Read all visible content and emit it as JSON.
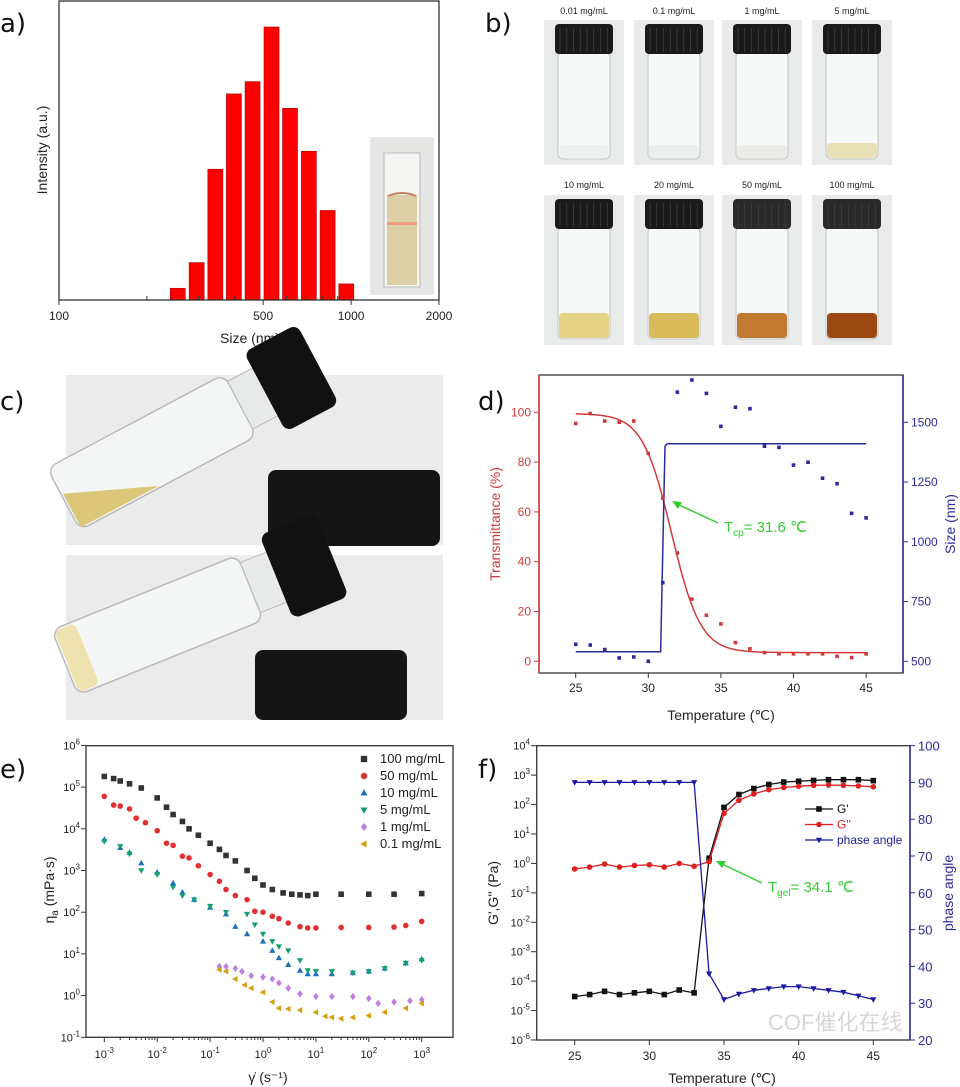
{
  "panel_labels": {
    "a": "a)",
    "b": "b)",
    "c": "c)",
    "d": "d)",
    "e": "e)",
    "f": "f)"
  },
  "chart_data": [
    {
      "id": "a",
      "type": "bar",
      "xlabel": "Size (nm)",
      "ylabel": "Intensity (a.u.)",
      "xscale": "log",
      "xlim": [
        100,
        2000
      ],
      "xticks": [
        100,
        500,
        1000,
        2000
      ],
      "bar_color": "#ff0000",
      "x": [
        255,
        296,
        343,
        397,
        460,
        534,
        618,
        717,
        831,
        963
      ],
      "values": [
        4.3,
        13.7,
        47.9,
        75.5,
        80.0,
        100,
        70.2,
        54.5,
        32.8,
        5.9
      ],
      "inset": "cuvette photo"
    },
    {
      "id": "d",
      "type": "scatter",
      "xlabel": "Temperature (℃)",
      "ylabel_left": "Transmittance (%)",
      "ylabel_right": "Size (nm)",
      "xlim": [
        22.5,
        47.5
      ],
      "xticks": [
        25,
        30,
        35,
        40,
        45
      ],
      "ylim_left": [
        -5,
        115
      ],
      "yticks_left": [
        0,
        20,
        40,
        60,
        80,
        100
      ],
      "ylim_right": [
        450,
        1700
      ],
      "yticks_right": [
        500,
        750,
        1000,
        1250,
        1500
      ],
      "left_color": "#d03a3a",
      "right_color": "#2b2b9a",
      "x": [
        25,
        26,
        27,
        28,
        29,
        30,
        31,
        32,
        33,
        34,
        35,
        36,
        37,
        38,
        39,
        40,
        41,
        42,
        43,
        44,
        45
      ],
      "transmittance": [
        95.5,
        99.5,
        96.5,
        96,
        96.5,
        83.5,
        65.5,
        43.5,
        25,
        18.5,
        15,
        7.5,
        5,
        3.5,
        3,
        3,
        3,
        3,
        2,
        1.5,
        3
      ],
      "size": [
        571,
        568,
        549,
        514,
        518,
        500,
        829,
        1626,
        1677,
        1621,
        1483,
        1563,
        1557,
        1400,
        1395,
        1321,
        1333,
        1266,
        1243,
        1119,
        1100
      ],
      "size_fit": [
        [
          25,
          540
        ],
        [
          30.85,
          540
        ],
        [
          31.15,
          1400
        ],
        [
          31.3,
          1410
        ],
        [
          45,
          1410
        ]
      ],
      "annotation": {
        "main": "T",
        "sub": "cp",
        "rest": "= 31.6 ℃",
        "color": "#33cc33"
      }
    },
    {
      "id": "e",
      "type": "scatter",
      "xlabel": "γ̇ (s⁻¹)",
      "ylabel_main": "η",
      "ylabel_sub": "a",
      "ylabel_rest": " (mPa·s)",
      "xscale": "log",
      "yscale": "log",
      "xlim": [
        0.00045,
        4000
      ],
      "ylim": [
        0.1,
        1000000
      ],
      "xticks": [
        0.001,
        0.01,
        0.1,
        1,
        10,
        100,
        1000
      ],
      "yticks": [
        0.1,
        1,
        10,
        100,
        1000,
        10000,
        100000,
        1000000
      ],
      "legend": "top-right",
      "series": [
        {
          "name": "100 mg/mL",
          "marker": "square",
          "color": "#333333",
          "points": [
            [
              0.001,
              180000
            ],
            [
              0.0015,
              160000
            ],
            [
              0.002,
              140000
            ],
            [
              0.003,
              120000
            ],
            [
              0.005,
              95000
            ],
            [
              0.01,
              55000
            ],
            [
              0.015,
              33000
            ],
            [
              0.02,
              22000
            ],
            [
              0.03,
              15000
            ],
            [
              0.04,
              10000
            ],
            [
              0.06,
              7000
            ],
            [
              0.1,
              4500
            ],
            [
              0.15,
              3200
            ],
            [
              0.2,
              2300
            ],
            [
              0.3,
              1700
            ],
            [
              0.5,
              1000
            ],
            [
              0.7,
              650
            ],
            [
              1,
              450
            ],
            [
              1.5,
              350
            ],
            [
              2.4,
              290
            ],
            [
              3.5,
              270
            ],
            [
              5,
              260
            ],
            [
              7,
              250
            ],
            [
              10,
              270
            ],
            [
              30,
              270
            ],
            [
              100,
              270
            ],
            [
              300,
              270
            ],
            [
              1000,
              280
            ]
          ]
        },
        {
          "name": "50 mg/mL",
          "marker": "circle",
          "color": "#e03030",
          "points": [
            [
              0.001,
              60000
            ],
            [
              0.0015,
              37000
            ],
            [
              0.002,
              35000
            ],
            [
              0.003,
              30000
            ],
            [
              0.004,
              18000
            ],
            [
              0.006,
              14000
            ],
            [
              0.01,
              9000
            ],
            [
              0.015,
              4500
            ],
            [
              0.02,
              4000
            ],
            [
              0.03,
              2200
            ],
            [
              0.04,
              2000
            ],
            [
              0.06,
              1300
            ],
            [
              0.1,
              800
            ],
            [
              0.15,
              550
            ],
            [
              0.2,
              350
            ],
            [
              0.3,
              250
            ],
            [
              0.5,
              200
            ],
            [
              0.7,
              105
            ],
            [
              1,
              100
            ],
            [
              1.5,
              80
            ],
            [
              2,
              70
            ],
            [
              3,
              55
            ],
            [
              5,
              45
            ],
            [
              7,
              42
            ],
            [
              10,
              42
            ],
            [
              30,
              43
            ],
            [
              100,
              43
            ],
            [
              300,
              44
            ],
            [
              500,
              48
            ],
            [
              1000,
              60
            ]
          ]
        },
        {
          "name": "10 mg/mL",
          "marker": "triangle-up",
          "color": "#1f6fc0",
          "points": [
            [
              0.001,
              5500
            ],
            [
              0.002,
              3500
            ],
            [
              0.003,
              2700
            ],
            [
              0.005,
              1500
            ],
            [
              0.01,
              900
            ],
            [
              0.02,
              500
            ],
            [
              0.03,
              300
            ],
            [
              0.05,
              200
            ],
            [
              0.1,
              130
            ],
            [
              0.2,
              90
            ],
            [
              0.3,
              45
            ],
            [
              0.5,
              30
            ],
            [
              1,
              20
            ],
            [
              1.5,
              12
            ],
            [
              2,
              8
            ],
            [
              3,
              5.5
            ],
            [
              5,
              4
            ],
            [
              7,
              3.3
            ],
            [
              10,
              3.3
            ],
            [
              20,
              3.3
            ],
            [
              50,
              3.5
            ],
            [
              100,
              3.8
            ],
            [
              200,
              4.5
            ],
            [
              500,
              6
            ],
            [
              1000,
              7.5
            ]
          ]
        },
        {
          "name": "5 mg/mL",
          "marker": "triangle-down",
          "color": "#10a070",
          "points": [
            [
              0.001,
              5000
            ],
            [
              0.002,
              3800
            ],
            [
              0.003,
              2500
            ],
            [
              0.005,
              1000
            ],
            [
              0.01,
              800
            ],
            [
              0.02,
              400
            ],
            [
              0.03,
              250
            ],
            [
              0.05,
              200
            ],
            [
              0.1,
              140
            ],
            [
              0.2,
              100
            ],
            [
              0.5,
              90
            ],
            [
              0.7,
              50
            ],
            [
              1,
              30
            ],
            [
              1.5,
              20
            ],
            [
              2,
              15
            ],
            [
              3,
              12
            ],
            [
              5,
              7
            ],
            [
              7,
              4
            ],
            [
              10,
              3.8
            ],
            [
              20,
              3.8
            ],
            [
              50,
              3.5
            ],
            [
              100,
              3.8
            ],
            [
              200,
              4.5
            ],
            [
              500,
              6
            ],
            [
              1000,
              7
            ]
          ]
        },
        {
          "name": "1 mg/mL",
          "marker": "diamond",
          "color": "#c080e0",
          "points": [
            [
              0.15,
              5
            ],
            [
              0.2,
              5
            ],
            [
              0.3,
              4.5
            ],
            [
              0.4,
              3.8
            ],
            [
              0.6,
              3
            ],
            [
              1,
              2.8
            ],
            [
              1.5,
              2.5
            ],
            [
              2,
              2
            ],
            [
              3,
              1.5
            ],
            [
              5,
              1.1
            ],
            [
              10,
              0.95
            ],
            [
              20,
              0.95
            ],
            [
              50,
              0.95
            ],
            [
              100,
              0.85
            ],
            [
              150,
              0.65
            ],
            [
              300,
              0.7
            ],
            [
              600,
              0.75
            ],
            [
              1000,
              0.8
            ]
          ]
        },
        {
          "name": "0.1 mg/mL",
          "marker": "triangle-left",
          "color": "#d4a010",
          "points": [
            [
              0.15,
              4.2
            ],
            [
              0.2,
              3.8
            ],
            [
              0.3,
              2.5
            ],
            [
              0.45,
              1.8
            ],
            [
              0.6,
              1.5
            ],
            [
              1,
              1.2
            ],
            [
              1.5,
              0.7
            ],
            [
              2,
              0.5
            ],
            [
              3,
              0.48
            ],
            [
              5,
              0.45
            ],
            [
              10,
              0.4
            ],
            [
              15,
              0.32
            ],
            [
              20,
              0.3
            ],
            [
              30,
              0.28
            ],
            [
              50,
              0.3
            ],
            [
              100,
              0.33
            ],
            [
              200,
              0.4
            ],
            [
              500,
              0.5
            ],
            [
              1000,
              0.65
            ]
          ]
        }
      ]
    },
    {
      "id": "f",
      "type": "line",
      "xlabel": "Temperature (℃)",
      "ylabel_left": "G',G'' (Pa)",
      "ylabel_right": "phase angle",
      "xlim": [
        22.5,
        47.5
      ],
      "xticks": [
        25,
        30,
        35,
        40,
        45
      ],
      "yscale_left": "log",
      "ylim_left": [
        1e-06,
        10000
      ],
      "yticks_left": [
        1e-06,
        1e-05,
        0.0001,
        0.001,
        0.01,
        0.1,
        1,
        10,
        100,
        1000,
        10000
      ],
      "ylim_right": [
        20,
        100
      ],
      "yticks_right": [
        20,
        30,
        40,
        50,
        60,
        70,
        80,
        90,
        100
      ],
      "right_color": "#2b2b9a",
      "legend": "right",
      "x": [
        25,
        26,
        27,
        28,
        29,
        30,
        31,
        32,
        33,
        34,
        35,
        36,
        37,
        38,
        39,
        40,
        41,
        42,
        43,
        44,
        45
      ],
      "series": [
        {
          "name": "G'",
          "marker": "square",
          "color": "#111111",
          "axis": "left",
          "values": [
            3e-05,
            3.5e-05,
            4.5e-05,
            3.5e-05,
            4e-05,
            4.5e-05,
            3.5e-05,
            5e-05,
            4e-05,
            1.5,
            80,
            220,
            350,
            480,
            580,
            620,
            660,
            700,
            700,
            700,
            650
          ]
        },
        {
          "name": "G''",
          "marker": "circle",
          "color": "#e02020",
          "axis": "left",
          "values": [
            0.65,
            0.75,
            0.95,
            0.75,
            0.85,
            0.9,
            0.75,
            1.0,
            0.8,
            1.15,
            50,
            140,
            230,
            320,
            380,
            420,
            450,
            460,
            450,
            430,
            400
          ]
        },
        {
          "name": "phase angle",
          "marker": "triangle-down",
          "color": "#1a1aa0",
          "axis": "right",
          "values": [
            90,
            90,
            90,
            90,
            90,
            90,
            90,
            90,
            90,
            38,
            31,
            32.5,
            33.5,
            34,
            34.5,
            34.5,
            34,
            33.5,
            33,
            32,
            31
          ]
        }
      ],
      "annotation": {
        "main": "T",
        "sub": "gel",
        "rest": "= 34.1 ℃",
        "color": "#33cc33"
      },
      "watermark": "COF催化在线"
    }
  ],
  "panel_b": {
    "vials": [
      {
        "label": "0.01 mg/mL",
        "liquid": "#eef0f0",
        "cap": "#1a1a1a"
      },
      {
        "label": "0.1 mg/mL",
        "liquid": "#eceeee",
        "cap": "#1a1a1a"
      },
      {
        "label": "1 mg/mL",
        "liquid": "#ecece6",
        "cap": "#1a1a1a"
      },
      {
        "label": "5 mg/mL",
        "liquid": "#e8e0b4",
        "cap": "#1a1a1a"
      },
      {
        "label": "10 mg/mL",
        "liquid": "#e3d184",
        "cap": "#1a1a1a"
      },
      {
        "label": "20 mg/mL",
        "liquid": "#d9bb5c",
        "cap": "#1a1a1a"
      },
      {
        "label": "50 mg/mL",
        "liquid": "#c27a30",
        "cap": "#2a2a2a"
      },
      {
        "label": "100 mg/mL",
        "liquid": "#9c4812",
        "cap": "#2a2a2a"
      }
    ]
  },
  "panel_c": {
    "photos": [
      {
        "state": "tilted vial with yellow liquid",
        "liquid": "#dcc67a"
      },
      {
        "state": "tilted vial with cream gel",
        "liquid": "#f0e2b0"
      }
    ]
  }
}
